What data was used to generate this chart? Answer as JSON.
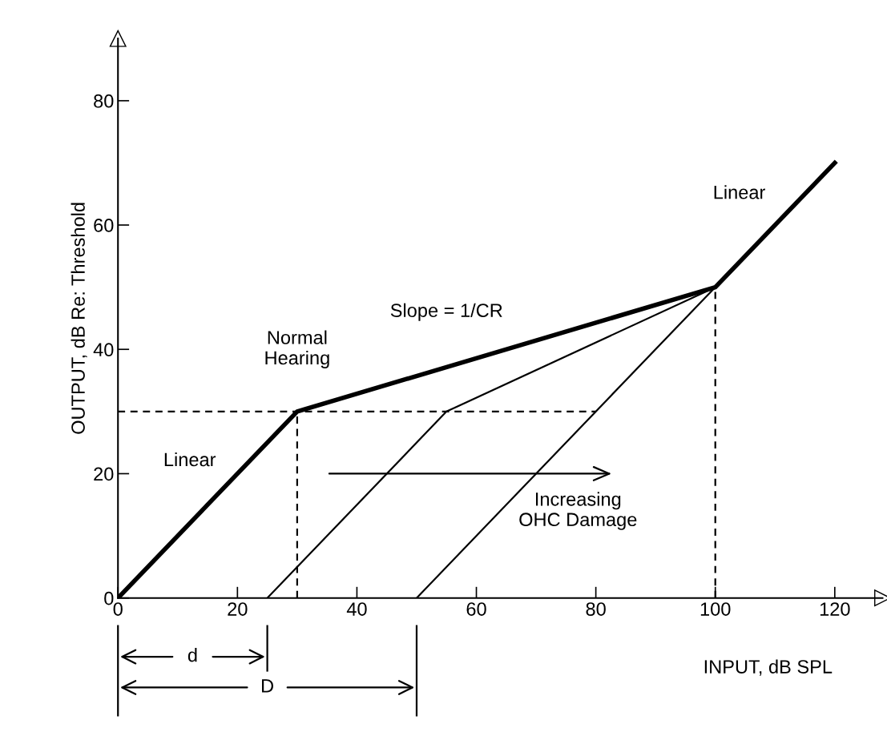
{
  "chart_data": {
    "type": "line",
    "xlabel": "INPUT, dB SPL",
    "ylabel": "OUTPUT, dB Re: Threshold",
    "xlim": [
      0,
      128
    ],
    "ylim": [
      0,
      90
    ],
    "xticks": [
      0,
      20,
      40,
      60,
      80,
      100,
      120
    ],
    "yticks": [
      0,
      20,
      40,
      60,
      80
    ],
    "grid": false,
    "marker": "none",
    "series": [
      {
        "color": "#000000",
        "x": [
          0,
          30,
          100,
          120
        ],
        "values": [
          0,
          30,
          50,
          70
        ],
        "line_style": "solid"
      },
      {
        "color": "#000000",
        "x": [
          25,
          55,
          100
        ],
        "values": [
          0,
          30,
          50
        ],
        "line_style": "solid"
      },
      {
        "color": "#000000",
        "x": [
          50,
          100
        ],
        "values": [
          0,
          50
        ],
        "line_style": "solid"
      },
      {
        "color": "#000000",
        "x": [
          0,
          80
        ],
        "values": [
          30,
          30
        ],
        "line_style": "dashed"
      }
    ],
    "ref_lines": [
      {
        "axis": "x",
        "value": 30,
        "line_style": "dashed",
        "color": "#000000"
      },
      {
        "axis": "x",
        "value": 100,
        "line_style": "dashed",
        "color": "#000000"
      }
    ],
    "annotations": [
      "Linear",
      "Normal\nHearing",
      "Slope = 1/CR",
      "Linear",
      "Increasing\nOHC Damage",
      "d",
      "D"
    ]
  }
}
